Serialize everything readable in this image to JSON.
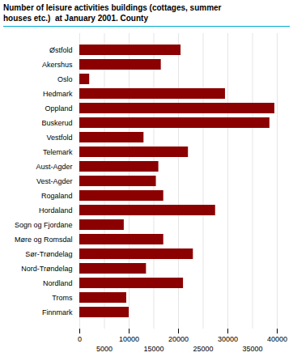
{
  "chart_data": {
    "type": "bar",
    "orientation": "horizontal",
    "title": "Number of leisure activities buildings (cottages, summer\nhouses etc.)  at January 2001. County",
    "categories": [
      "Østfold",
      "Akershus",
      "Oslo",
      "Hedmark",
      "Oppland",
      "Buskerud",
      "Vestfold",
      "Telemark",
      "Aust-Agder",
      "Vest-Agder",
      "Rogaland",
      "Hordaland",
      "Sogn og Fjordane",
      "Møre og Romsdal",
      "Sør-Trøndelag",
      "Nord-Trøndelag",
      "Nordland",
      "Troms",
      "Finnmark"
    ],
    "values": [
      20500,
      16500,
      2000,
      29500,
      39500,
      38500,
      13000,
      22000,
      16000,
      15500,
      17000,
      27500,
      9000,
      17000,
      23000,
      13500,
      21000,
      9500,
      10000
    ],
    "color": "#8B0000",
    "xlim": [
      0,
      40000
    ],
    "xticks": [
      0,
      5000,
      10000,
      15000,
      20000,
      25000,
      30000,
      35000,
      40000
    ],
    "grid": true
  }
}
